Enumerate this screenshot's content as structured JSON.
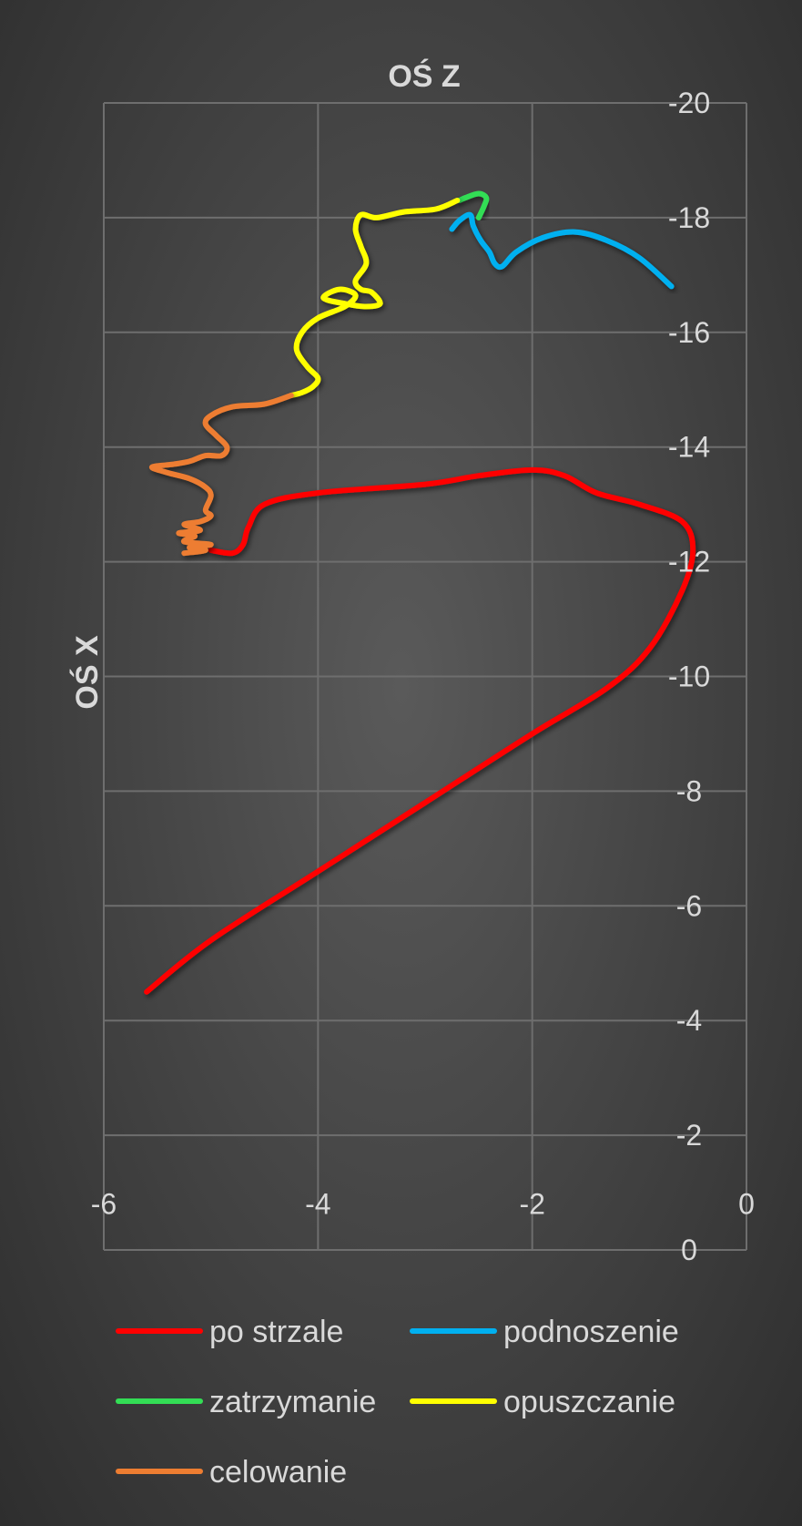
{
  "chart_data": {
    "type": "line",
    "title": "",
    "xlabel": "OŚ Z",
    "ylabel": "OŚ X",
    "xlim": [
      -6,
      0
    ],
    "ylim": [
      0,
      -20
    ],
    "x_ticks": [
      "-6",
      "-4",
      "-2",
      "0"
    ],
    "y_ticks": [
      "-20",
      "-18",
      "-16",
      "-14",
      "-12",
      "-10",
      "-8",
      "-6",
      "-4",
      "-2",
      "0"
    ],
    "grid": true,
    "legend_position": "bottom",
    "series": [
      {
        "name": "po strzale",
        "color": "#ff0000",
        "x": [
          -5.0,
          -4.8,
          -4.7,
          -4.65,
          -4.5,
          -4.0,
          -3.0,
          -2.5,
          -2.0,
          -1.7,
          -1.4,
          -1.0,
          -0.6,
          -0.5,
          -0.6,
          -0.9,
          -1.3,
          -2.0,
          -3.0,
          -4.0,
          -5.0,
          -5.6
        ],
        "y": [
          -12.2,
          -12.15,
          -12.3,
          -12.6,
          -13.0,
          -13.2,
          -13.35,
          -13.5,
          -13.6,
          -13.5,
          -13.2,
          -13.0,
          -12.7,
          -12.2,
          -11.5,
          -10.5,
          -9.8,
          -9.0,
          -7.8,
          -6.6,
          -5.4,
          -4.5
        ]
      },
      {
        "name": "podnoszenie",
        "color": "#00b0f0",
        "x": [
          -2.75,
          -2.68,
          -2.58,
          -2.55,
          -2.48,
          -2.4,
          -2.35,
          -2.28,
          -2.15,
          -1.9,
          -1.6,
          -1.3,
          -1.0,
          -0.7
        ],
        "y": [
          -17.8,
          -17.95,
          -18.05,
          -17.85,
          -17.6,
          -17.4,
          -17.2,
          -17.15,
          -17.4,
          -17.65,
          -17.75,
          -17.6,
          -17.3,
          -16.8
        ]
      },
      {
        "name": "zatrzymanie",
        "color": "#33dd55",
        "x": [
          -2.5,
          -2.45,
          -2.43,
          -2.5,
          -2.62,
          -2.68
        ],
        "y": [
          -18.0,
          -18.2,
          -18.35,
          -18.42,
          -18.35,
          -18.3
        ]
      },
      {
        "name": "opuszczanie",
        "color": "#ffff00",
        "x": [
          -2.7,
          -2.9,
          -3.2,
          -3.45,
          -3.6,
          -3.65,
          -3.6,
          -3.55,
          -3.65,
          -3.6,
          -3.5,
          -3.42,
          -3.55,
          -3.75,
          -3.95,
          -3.8,
          -3.65,
          -3.75,
          -4.0,
          -4.15,
          -4.2,
          -4.1,
          -4.0,
          -4.05,
          -4.15,
          -4.25
        ],
        "y": [
          -18.3,
          -18.15,
          -18.1,
          -18.0,
          -18.05,
          -17.8,
          -17.5,
          -17.2,
          -16.9,
          -16.75,
          -16.7,
          -16.5,
          -16.45,
          -16.5,
          -16.6,
          -16.75,
          -16.65,
          -16.45,
          -16.25,
          -16.0,
          -15.7,
          -15.4,
          -15.2,
          -15.05,
          -14.95,
          -14.9
        ]
      },
      {
        "name": "celowanie",
        "color": "#ed7d31",
        "x": [
          -4.25,
          -4.5,
          -4.8,
          -5.0,
          -5.05,
          -4.95,
          -4.85,
          -4.9,
          -5.05,
          -5.2,
          -5.35,
          -5.55,
          -5.4,
          -5.2,
          -5.05,
          -5.0,
          -5.05,
          -5.0,
          -5.1,
          -5.25,
          -5.1,
          -5.3,
          -5.15,
          -5.25,
          -5.0,
          -5.2,
          -5.05,
          -5.25
        ],
        "y": [
          -14.9,
          -14.75,
          -14.7,
          -14.55,
          -14.4,
          -14.2,
          -14.0,
          -13.85,
          -13.85,
          -13.75,
          -13.7,
          -13.65,
          -13.55,
          -13.45,
          -13.3,
          -13.15,
          -12.9,
          -12.8,
          -12.7,
          -12.65,
          -12.55,
          -12.5,
          -12.45,
          -12.35,
          -12.3,
          -12.25,
          -12.2,
          -12.15
        ]
      }
    ]
  }
}
